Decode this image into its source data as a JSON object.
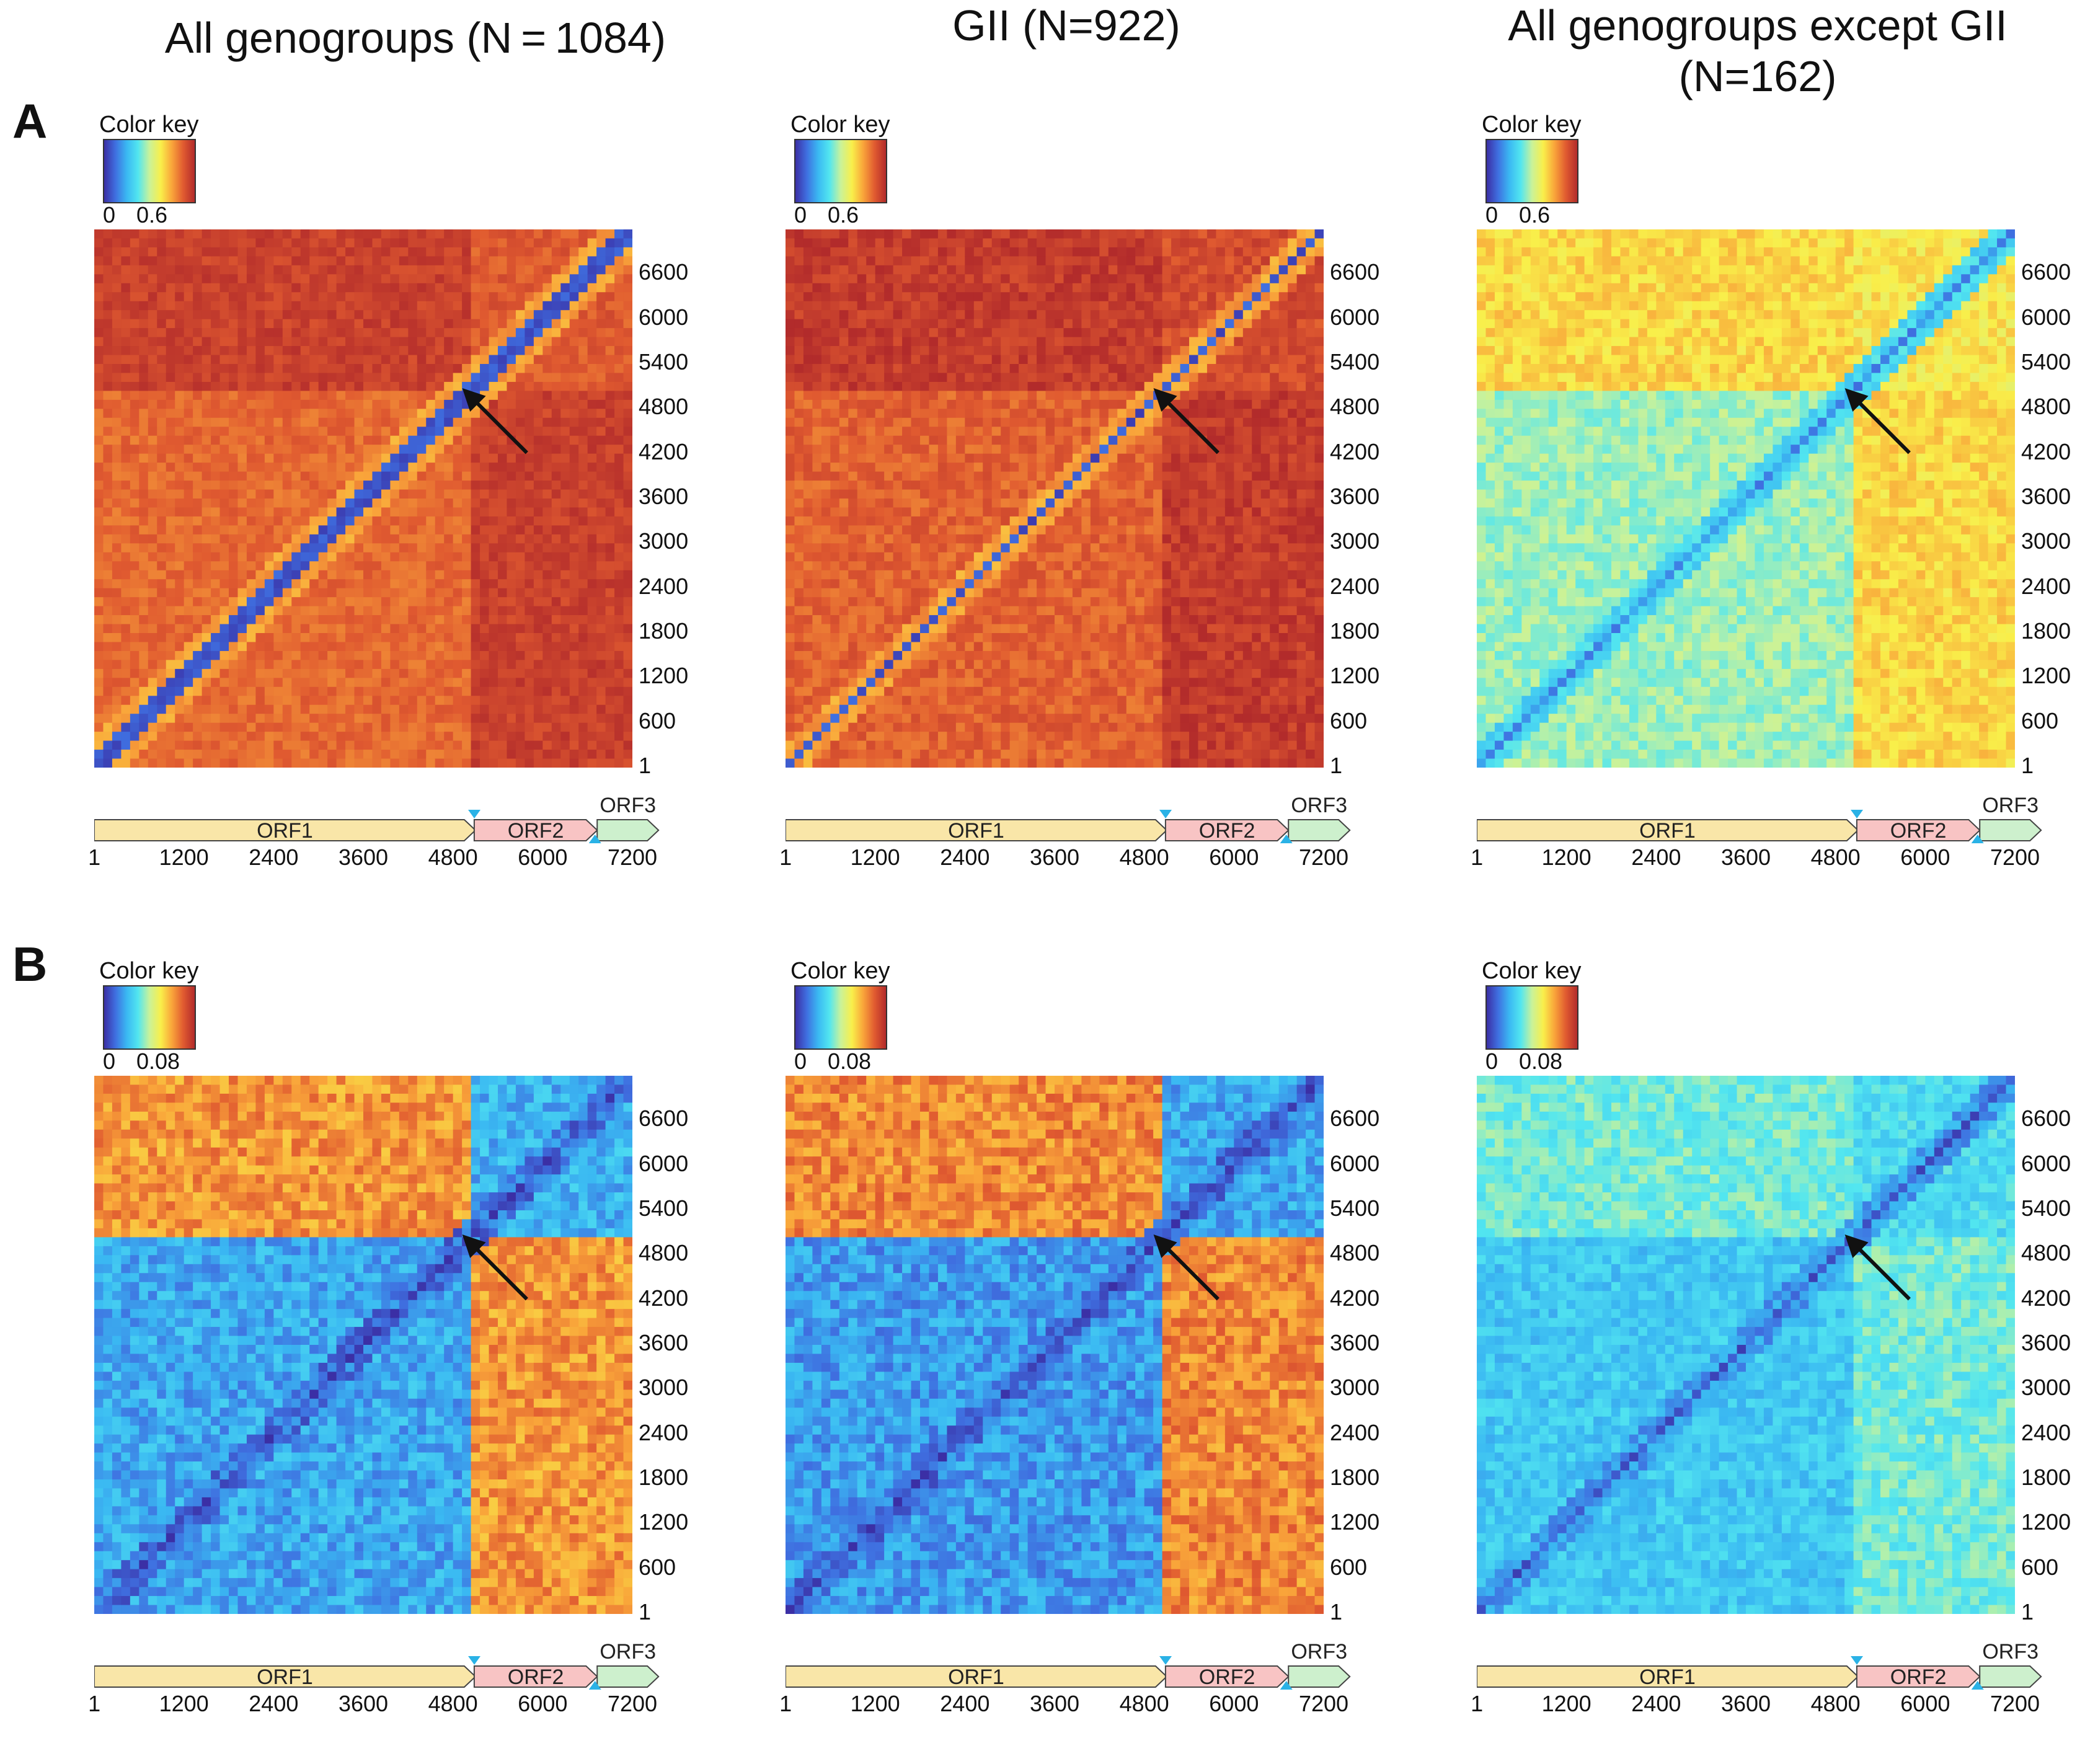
{
  "columns": [
    {
      "title": "All genogroups (N = 1084)"
    },
    {
      "title": "GII (N=922)"
    },
    {
      "title": "All genogroups except GII\n(N=162)"
    }
  ],
  "rows": [
    {
      "label": "A",
      "color_key": {
        "title": "Color key",
        "min": "0",
        "mid": "0.6"
      }
    },
    {
      "label": "B",
      "color_key": {
        "title": "Color key",
        "min": "0",
        "mid": "0.08"
      }
    }
  ],
  "colors": {
    "orf1": "#f9e6a8",
    "orf2": "#f8c4c4",
    "orf3": "#cdf0cd",
    "marker": "#2ab2e6",
    "arrow": "#111111"
  },
  "chart_data": [
    {
      "type": "heatmap",
      "row": "A",
      "title": "All genogroups (N = 1084)",
      "colorscale_range": [
        0,
        0.6
      ],
      "axis_ticks": [
        "1",
        "600",
        "1200",
        "1800",
        "2400",
        "3000",
        "3600",
        "4200",
        "4800",
        "5400",
        "6000",
        "6600"
      ],
      "xticks": [
        "1",
        "1200",
        "2400",
        "3600",
        "4800",
        "6000",
        "7200"
      ],
      "genome_length": 7200,
      "breakpoint": 5000,
      "values": {
        "diag": 0.05,
        "near": 0.5,
        "orf1_block": 0.56,
        "orf2_block": 0.58,
        "cross": 0.62,
        "noise": 0.03,
        "band": 380
      }
    },
    {
      "type": "heatmap",
      "row": "A",
      "title": "GII (N=922)",
      "colorscale_range": [
        0,
        0.6
      ],
      "axis_ticks": [
        "1",
        "600",
        "1200",
        "1800",
        "2400",
        "3000",
        "3600",
        "4200",
        "4800",
        "5400",
        "6000",
        "6600"
      ],
      "xticks": [
        "1",
        "1200",
        "2400",
        "3600",
        "4800",
        "6000",
        "7200"
      ],
      "genome_length": 7200,
      "breakpoint": 5000,
      "values": {
        "diag": 0.05,
        "near": 0.5,
        "orf1_block": 0.57,
        "orf2_block": 0.6,
        "cross": 0.63,
        "noise": 0.035,
        "band": 340
      }
    },
    {
      "type": "heatmap",
      "row": "A",
      "title": "All genogroups except GII (N=162)",
      "colorscale_range": [
        0,
        0.6
      ],
      "axis_ticks": [
        "1",
        "600",
        "1200",
        "1800",
        "2400",
        "3000",
        "3600",
        "4200",
        "4800",
        "5400",
        "6000",
        "6600"
      ],
      "xticks": [
        "1",
        "1200",
        "2400",
        "3600",
        "4800",
        "6000",
        "7200"
      ],
      "genome_length": 7200,
      "breakpoint": 5000,
      "values": {
        "diag": 0.12,
        "near": 0.22,
        "orf1_block": 0.3,
        "orf2_block": 0.42,
        "cross": 0.44,
        "noise": 0.04,
        "band": 250
      }
    },
    {
      "type": "heatmap",
      "row": "B",
      "title": "All genogroups (N = 1084)",
      "colorscale_range": [
        0,
        0.08
      ],
      "axis_ticks": [
        "1",
        "600",
        "1200",
        "1800",
        "2400",
        "3000",
        "3600",
        "4200",
        "4800",
        "5400",
        "6000",
        "6600"
      ],
      "xticks": [
        "1",
        "1200",
        "2400",
        "3600",
        "4800",
        "6000",
        "7200"
      ],
      "genome_length": 7200,
      "breakpoint": 5000,
      "values": {
        "diag": 0.005,
        "near": 0.012,
        "orf1_block": 0.02,
        "orf2_block": 0.022,
        "cross": 0.068,
        "noise": 0.008,
        "band": 300
      }
    },
    {
      "type": "heatmap",
      "row": "B",
      "title": "GII (N=922)",
      "colorscale_range": [
        0,
        0.08
      ],
      "axis_ticks": [
        "1",
        "600",
        "1200",
        "1800",
        "2400",
        "3000",
        "3600",
        "4200",
        "4800",
        "5400",
        "6000",
        "6600"
      ],
      "xticks": [
        "1",
        "1200",
        "2400",
        "3600",
        "4800",
        "6000",
        "7200"
      ],
      "genome_length": 7200,
      "breakpoint": 5000,
      "values": {
        "diag": 0.005,
        "near": 0.012,
        "orf1_block": 0.018,
        "orf2_block": 0.02,
        "cross": 0.07,
        "noise": 0.008,
        "band": 300
      }
    },
    {
      "type": "heatmap",
      "row": "B",
      "title": "All genogroups except GII (N=162)",
      "colorscale_range": [
        0,
        0.08
      ],
      "axis_ticks": [
        "1",
        "600",
        "1200",
        "1800",
        "2400",
        "3000",
        "3600",
        "4200",
        "4800",
        "5400",
        "6000",
        "6600"
      ],
      "xticks": [
        "1",
        "1200",
        "2400",
        "3600",
        "4800",
        "6000",
        "7200"
      ],
      "genome_length": 7200,
      "breakpoint": 5000,
      "values": {
        "diag": 0.008,
        "near": 0.018,
        "orf1_block": 0.026,
        "orf2_block": 0.03,
        "cross": 0.036,
        "noise": 0.006,
        "band": 300
      }
    }
  ],
  "genome_map": {
    "orfs": [
      {
        "label": "ORF1",
        "start": 1,
        "end": 5100
      },
      {
        "label": "ORF2",
        "start": 5085,
        "end": 6730
      },
      {
        "label": "ORF3",
        "start": 6730,
        "end": 7550
      }
    ],
    "markers": [
      {
        "pos": 5085,
        "side": "top"
      },
      {
        "pos": 6700,
        "side": "bottom"
      }
    ]
  }
}
